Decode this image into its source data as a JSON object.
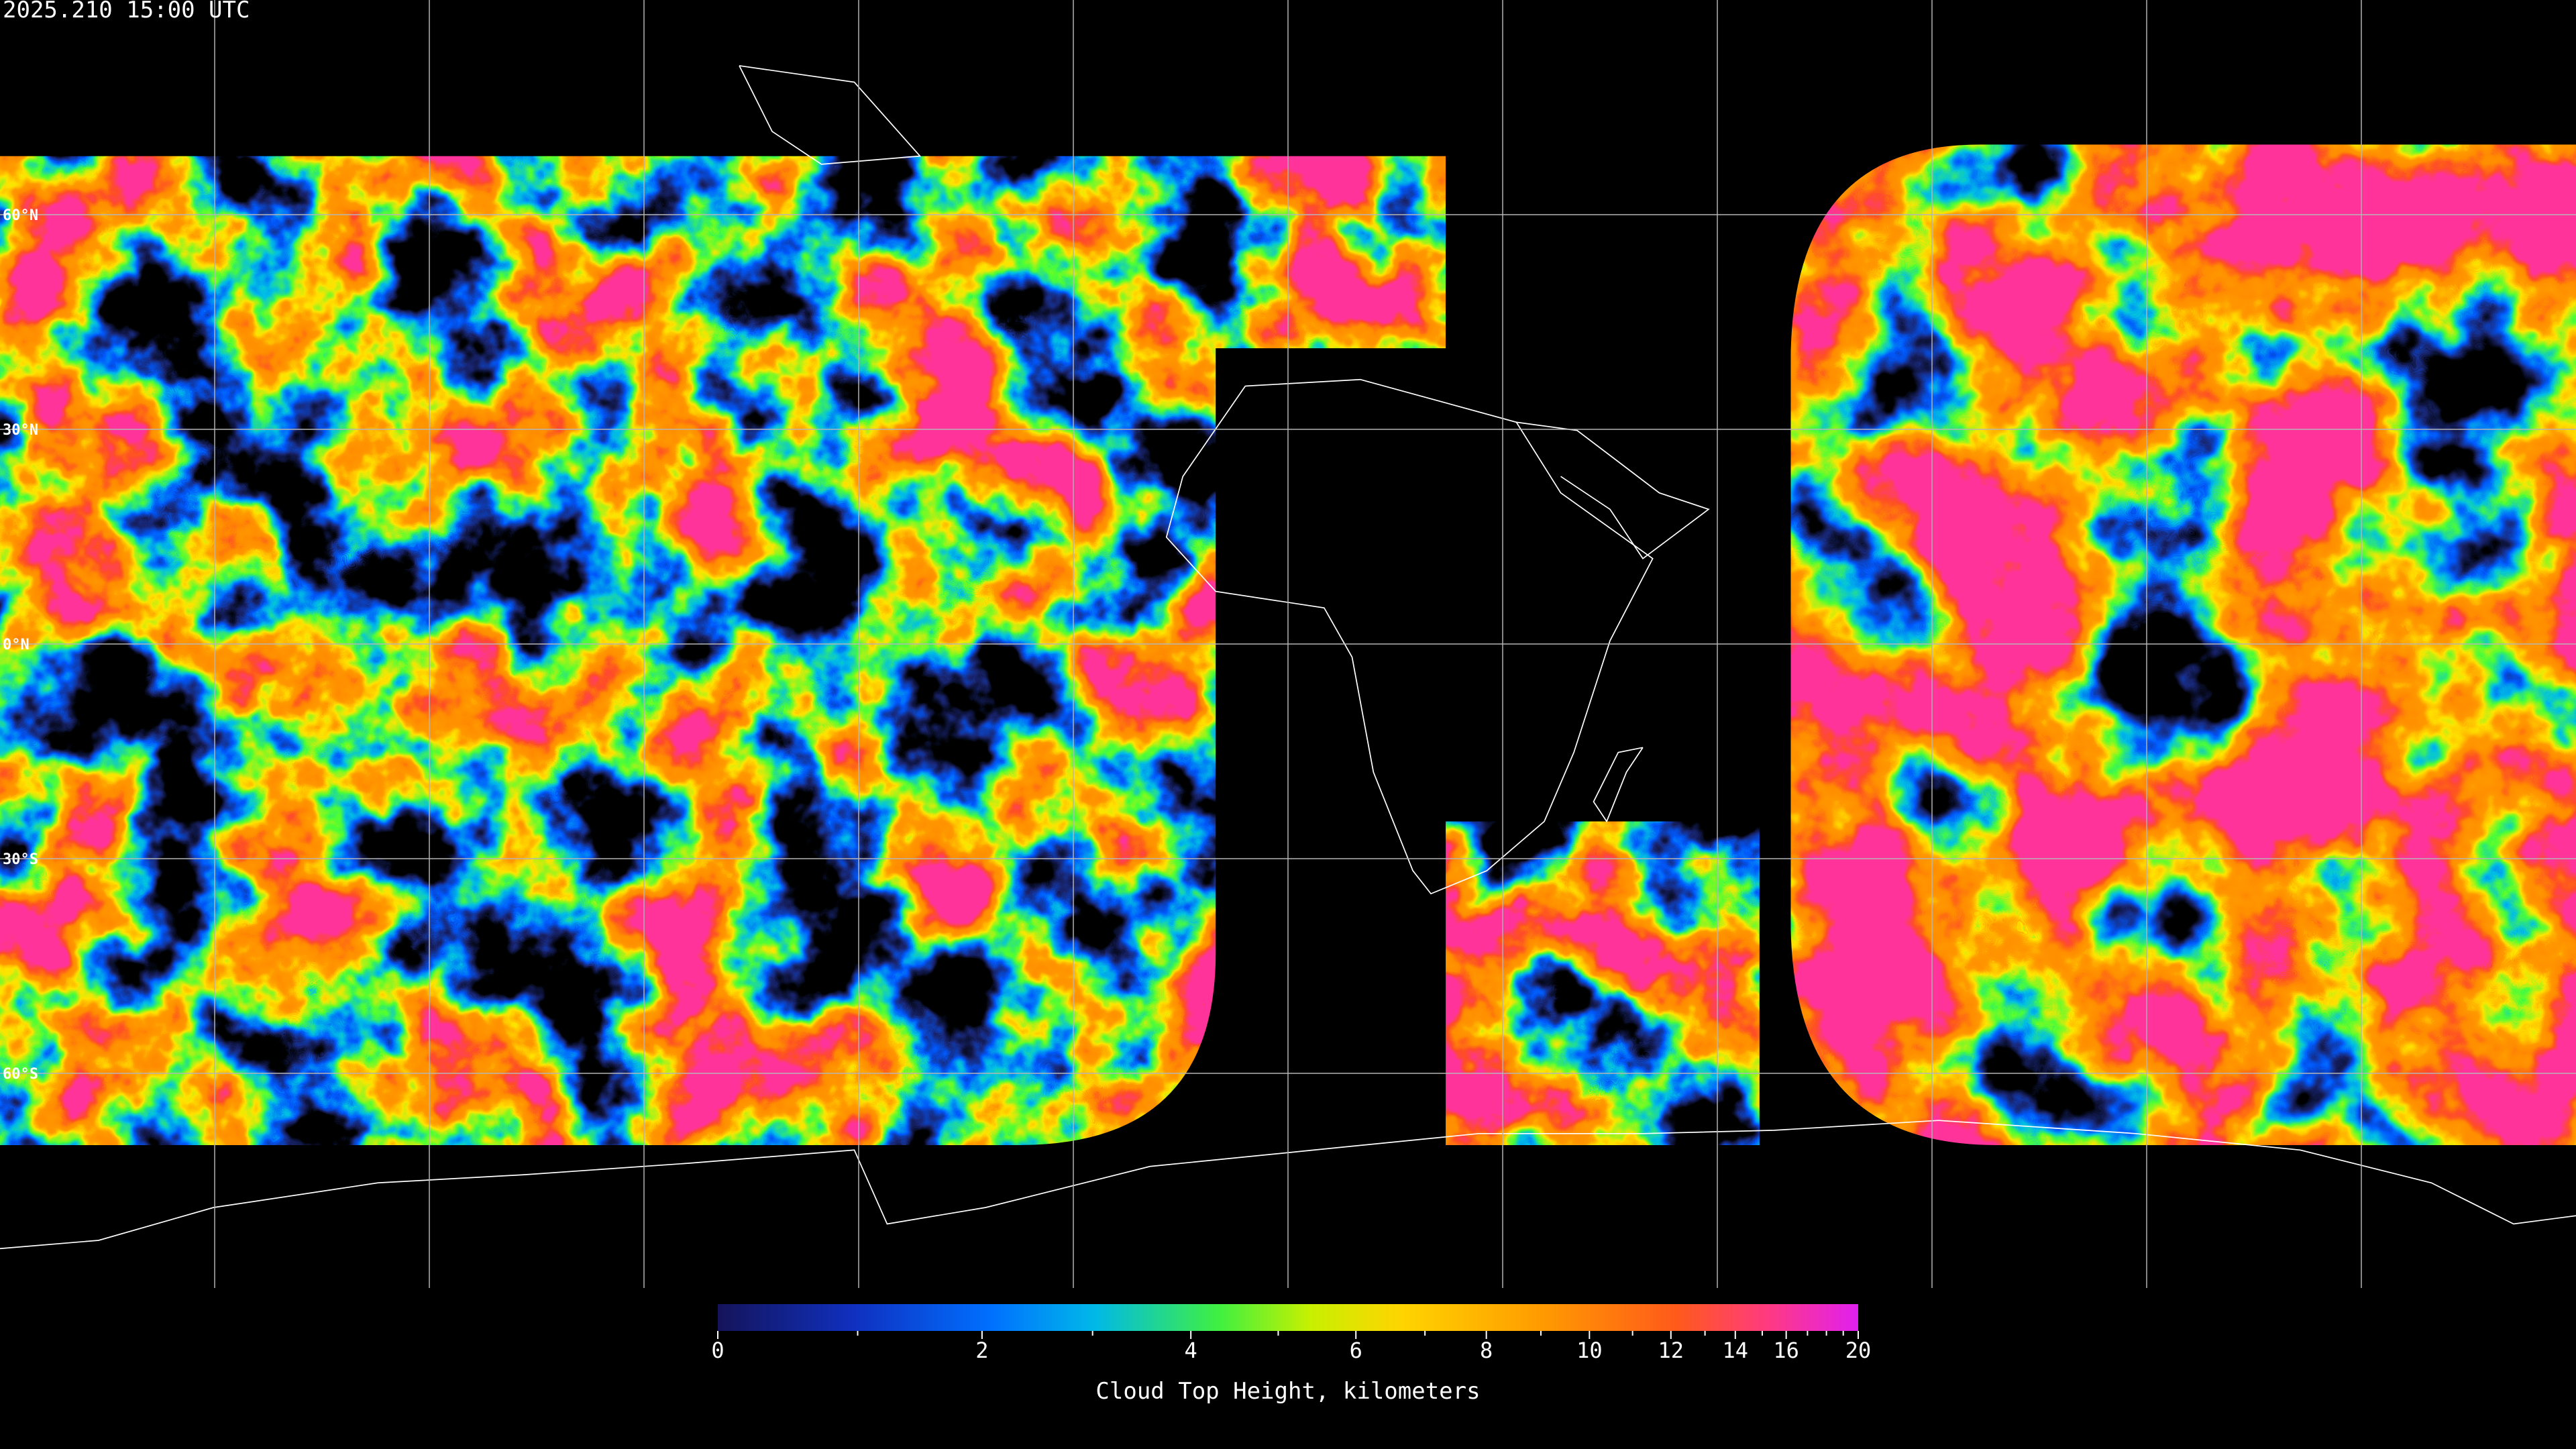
{
  "header": {
    "timestamp": "2025.210 15:00 UTC"
  },
  "map": {
    "lat_labels": [
      "60°N",
      "30°N",
      "0°N",
      "30°S",
      "60°S"
    ]
  },
  "colorbar": {
    "label": "Cloud Top Height, kilometers",
    "range": [
      0,
      20
    ],
    "ticks": [
      0,
      2,
      4,
      6,
      8,
      10,
      12,
      14,
      16,
      20
    ],
    "minor_ticks": [
      1,
      3,
      5,
      7,
      9,
      11,
      13,
      15,
      17,
      18,
      19
    ]
  }
}
